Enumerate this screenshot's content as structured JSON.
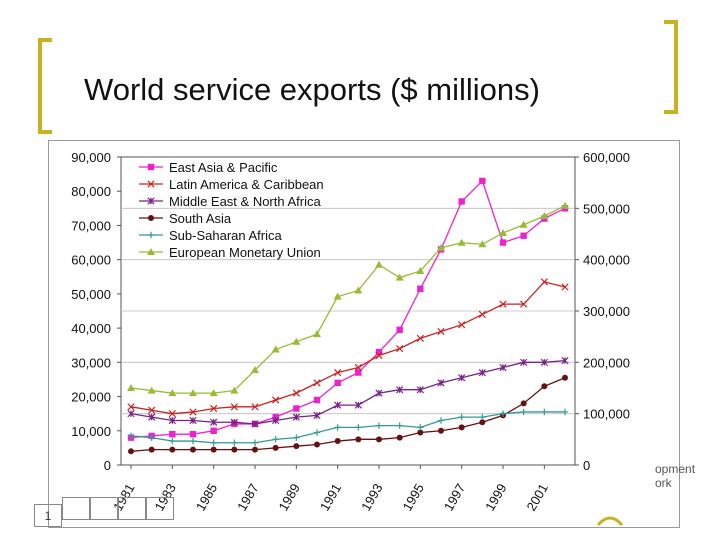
{
  "slide": {
    "title": "World service exports ($ millions)",
    "page_number": "1"
  },
  "footer": {
    "logo_line1": "opment",
    "logo_line2": "ork",
    "accent": "#c9b21f"
  },
  "chart_data": {
    "type": "line",
    "title": "World service exports ($ millions)",
    "x": [
      1981,
      1982,
      1983,
      1984,
      1985,
      1986,
      1987,
      1988,
      1989,
      1990,
      1991,
      1992,
      1993,
      1994,
      1995,
      1996,
      1997,
      1998,
      1999,
      2000,
      2001,
      2002
    ],
    "x_tick_labels": [
      "1981",
      "1983",
      "1985",
      "1987",
      "1989",
      "1991",
      "1993",
      "1995",
      "1997",
      "1999",
      "2001"
    ],
    "y_left": {
      "range": [
        0,
        90000
      ],
      "ticks": [
        "0",
        "10,000",
        "20,000",
        "30,000",
        "40,000",
        "50,000",
        "60,000",
        "70,000",
        "80,000",
        "90,000"
      ],
      "tick_values": [
        0,
        10000,
        20000,
        30000,
        40000,
        50000,
        60000,
        70000,
        80000,
        90000
      ]
    },
    "y_right": {
      "range": [
        0,
        600000
      ],
      "ticks": [
        "0",
        "100,000",
        "200,000",
        "300,000",
        "400,000",
        "500,000",
        "600,000"
      ],
      "tick_values": [
        0,
        100000,
        200000,
        300000,
        400000,
        500000,
        600000
      ]
    },
    "legend_position": "top-left",
    "series": [
      {
        "name": "East Asia & Pacific",
        "axis": "left",
        "color": "#ee22cc",
        "marker": "square",
        "values": [
          8000,
          8500,
          9000,
          9000,
          10000,
          12000,
          12000,
          14000,
          16500,
          19000,
          24000,
          27000,
          33000,
          39500,
          51500,
          63000,
          77000,
          83000,
          65000,
          67000,
          72000,
          75000
        ]
      },
      {
        "name": "Latin America & Caribbean",
        "axis": "left",
        "color": "#cc2222",
        "marker": "x",
        "values": [
          17000,
          16000,
          15000,
          15500,
          16500,
          17000,
          17000,
          19000,
          21000,
          24000,
          27000,
          28500,
          32000,
          34000,
          37000,
          39000,
          41000,
          44000,
          47000,
          47000,
          53500,
          52000
        ]
      },
      {
        "name": "Middle East & North Africa",
        "axis": "left",
        "color": "#772288",
        "marker": "star",
        "values": [
          15000,
          14000,
          13000,
          13000,
          12500,
          12500,
          12000,
          13000,
          14000,
          14500,
          17500,
          17500,
          21000,
          22000,
          22000,
          24000,
          25500,
          27000,
          28500,
          30000,
          30000,
          30500
        ]
      },
      {
        "name": "South Asia",
        "axis": "left",
        "color": "#661111",
        "marker": "circle",
        "values": [
          4000,
          4500,
          4500,
          4500,
          4500,
          4500,
          4500,
          5000,
          5500,
          6000,
          7000,
          7500,
          7500,
          8000,
          9500,
          10000,
          11000,
          12500,
          14500,
          18000,
          23000,
          25500
        ]
      },
      {
        "name": "Sub-Saharan Africa",
        "axis": "left",
        "color": "#339999",
        "marker": "plus",
        "values": [
          8500,
          8000,
          7000,
          7000,
          6500,
          6500,
          6500,
          7500,
          8000,
          9500,
          11000,
          11000,
          11500,
          11500,
          11000,
          13000,
          14000,
          14000,
          15000,
          15500,
          15500,
          15500
        ]
      },
      {
        "name": "European Monetary Union",
        "axis": "right",
        "color": "#99bb33",
        "marker": "triangle",
        "values": [
          150000,
          145000,
          140000,
          140000,
          140000,
          145000,
          185000,
          225000,
          240000,
          255000,
          328000,
          340000,
          390000,
          365000,
          378000,
          423000,
          433000,
          430000,
          452000,
          468000,
          485000,
          505000
        ]
      }
    ]
  }
}
